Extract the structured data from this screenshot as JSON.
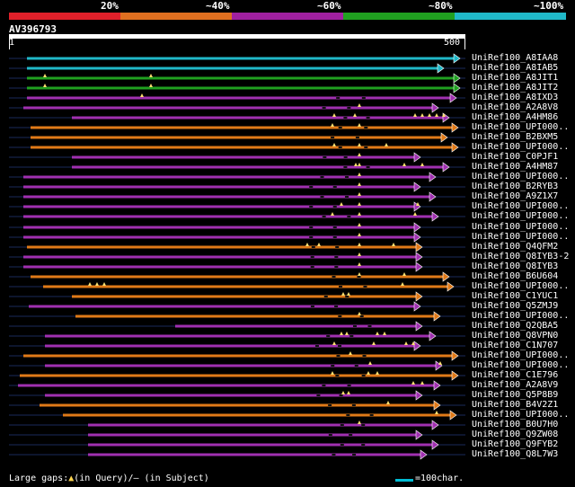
{
  "legend": {
    "colors": [
      "#e0202a",
      "#e07020",
      "#a020a0",
      "#20a020",
      "#20b8c8"
    ],
    "labels": [
      "20%",
      "~40%",
      "~60%",
      "~80%",
      "~100%"
    ]
  },
  "query": {
    "id": "AV396793",
    "start": "1",
    "end": "500"
  },
  "colors": {
    "cyan": "#20b8c8",
    "green": "#20a020",
    "magenta": "#a030b0",
    "orange": "#e07a18",
    "gap": "#ffe070"
  },
  "hits": [
    {
      "label": "UniRef100_A8IAA8",
      "color": "cyan"
    },
    {
      "label": "UniRef100_A8IAB5",
      "color": "cyan"
    },
    {
      "label": "UniRef100_A8JIT1",
      "color": "green"
    },
    {
      "label": "UniRef100_A8JIT2",
      "color": "green"
    },
    {
      "label": "UniRef100_A8IXD3",
      "color": "magenta"
    },
    {
      "label": "UniRef100_A2A8V8",
      "color": "magenta"
    },
    {
      "label": "UniRef100_A4HM86",
      "color": "magenta"
    },
    {
      "label": "UniRef100_UPI000..",
      "color": "orange"
    },
    {
      "label": "UniRef100_B2BXM5",
      "color": "orange"
    },
    {
      "label": "UniRef100_UPI000..",
      "color": "orange"
    },
    {
      "label": "UniRef100_C0PJF1",
      "color": "magenta"
    },
    {
      "label": "UniRef100_A4HM87",
      "color": "magenta"
    },
    {
      "label": "UniRef100_UPI000..",
      "color": "magenta"
    },
    {
      "label": "UniRef100_B2RYB3",
      "color": "magenta"
    },
    {
      "label": "UniRef100_A9Z1X7",
      "color": "magenta"
    },
    {
      "label": "UniRef100_UPI000..",
      "color": "magenta"
    },
    {
      "label": "UniRef100_UPI000..",
      "color": "magenta"
    },
    {
      "label": "UniRef100_UPI000..",
      "color": "magenta"
    },
    {
      "label": "UniRef100_UPI000..",
      "color": "magenta"
    },
    {
      "label": "UniRef100_Q4QFM2",
      "color": "orange"
    },
    {
      "label": "UniRef100_Q8IYB3-2",
      "color": "magenta"
    },
    {
      "label": "UniRef100_Q8IYB3",
      "color": "magenta"
    },
    {
      "label": "UniRef100_B6U604",
      "color": "orange"
    },
    {
      "label": "UniRef100_UPI000..",
      "color": "orange"
    },
    {
      "label": "UniRef100_C1YUC1",
      "color": "orange"
    },
    {
      "label": "UniRef100_Q5ZMJ9",
      "color": "magenta"
    },
    {
      "label": "UniRef100_UPI000..",
      "color": "orange"
    },
    {
      "label": "UniRef100_Q2QBA5",
      "color": "magenta"
    },
    {
      "label": "UniRef100_Q8VPN0",
      "color": "magenta"
    },
    {
      "label": "UniRef100_C1N707",
      "color": "magenta"
    },
    {
      "label": "UniRef100_UPI000..",
      "color": "orange"
    },
    {
      "label": "UniRef100_UPI000..",
      "color": "magenta"
    },
    {
      "label": "UniRef100_C1E796",
      "color": "orange"
    },
    {
      "label": "UniRef100_A2A8V9",
      "color": "magenta"
    },
    {
      "label": "UniRef100_Q5P8B9",
      "color": "magenta"
    },
    {
      "label": "UniRef100_B4V2Z1",
      "color": "orange"
    },
    {
      "label": "UniRef100_UPI000..",
      "color": "orange"
    },
    {
      "label": "UniRef100_B0U7H0",
      "color": "magenta"
    },
    {
      "label": "UniRef100_Q9ZW08",
      "color": "magenta"
    },
    {
      "label": "UniRef100_Q9FYB2",
      "color": "magenta"
    },
    {
      "label": "UniRef100_Q8L7W3",
      "color": "magenta"
    }
  ],
  "footer": {
    "large_gaps": "Large gaps:",
    "in_query": "(in Query)/",
    "dash": "–",
    "in_subject": " (in Subject)",
    "scale": "=100char."
  }
}
